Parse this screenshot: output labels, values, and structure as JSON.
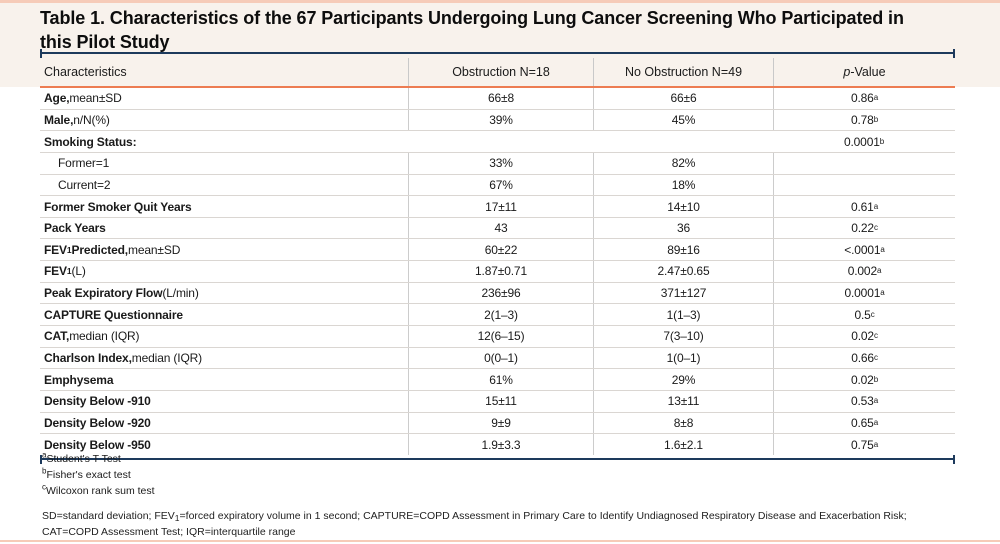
{
  "title": "Table 1. Characteristics of the 67 Participants Undergoing Lung Cancer Screening Who Participated in this Pilot Study",
  "colors": {
    "accent_bar": "#f6cbb8",
    "title_band": "#f8f2ec",
    "navy_rule": "#1d3a5c",
    "orange_rule": "#ed7c52",
    "row_separator": "#dad6d2",
    "column_divider": "#cccccc"
  },
  "table": {
    "header": {
      "col1": "Characteristics",
      "col2": "Obstruction N=18",
      "col3": "No Obstruction N=49",
      "col4_parts": [
        {
          "t": "p",
          "i": true
        },
        {
          "t": "-Value"
        }
      ]
    },
    "rows": [
      {
        "label": [
          {
            "t": "Age,",
            "b": true
          },
          {
            "t": " mean±SD"
          }
        ],
        "c1": "66±8",
        "c2": "66±6",
        "p": "0.86",
        "psup": "a"
      },
      {
        "label": [
          {
            "t": "Male,",
            "b": true
          },
          {
            "t": " n/N(%)"
          }
        ],
        "c1": "39%",
        "c2": "45%",
        "p": "0.78",
        "psup": "b"
      },
      {
        "label": [
          {
            "t": "Smoking Status:",
            "b": true
          }
        ],
        "span": true,
        "c1": "",
        "c2": "",
        "p": "0.0001",
        "psup": "b"
      },
      {
        "label": [
          {
            "t": "Former=1"
          }
        ],
        "indent": true,
        "c1": "33%",
        "c2": "82%",
        "p": "",
        "psup": ""
      },
      {
        "label": [
          {
            "t": "Current=2"
          }
        ],
        "indent": true,
        "c1": "67%",
        "c2": "18%",
        "p": "",
        "psup": ""
      },
      {
        "label": [
          {
            "t": "Former Smoker Quit Years",
            "b": true
          }
        ],
        "c1": "17±11",
        "c2": "14±10",
        "p": "0.61",
        "psup": "a"
      },
      {
        "label": [
          {
            "t": "Pack Years",
            "b": true
          }
        ],
        "c1": "43",
        "c2": "36",
        "p": "0.22",
        "psup": "c"
      },
      {
        "label": [
          {
            "t": "FEV",
            "b": true
          },
          {
            "t": "1",
            "b": true,
            "sub": true
          },
          {
            "t": " Predicted,",
            "b": true
          },
          {
            "t": " mean±SD"
          }
        ],
        "c1": "60±22",
        "c2": "89±16",
        "p": "<.0001",
        "psup": "a"
      },
      {
        "label": [
          {
            "t": "FEV",
            "b": true
          },
          {
            "t": "1",
            "b": true,
            "sub": true
          },
          {
            "t": "(L)"
          }
        ],
        "c1": "1.87±0.71",
        "c2": "2.47±0.65",
        "p": "0.002",
        "psup": "a"
      },
      {
        "label": [
          {
            "t": "Peak Expiratory Flow",
            "b": true
          },
          {
            "t": " (L/min)"
          }
        ],
        "c1": "236±96",
        "c2": "371±127",
        "p": "0.0001",
        "psup": "a"
      },
      {
        "label": [
          {
            "t": "CAPTURE Questionnaire",
            "b": true
          }
        ],
        "c1": "2(1–3)",
        "c2": "1(1–3)",
        "p": "0.5",
        "psup": "c"
      },
      {
        "label": [
          {
            "t": "CAT,",
            "b": true
          },
          {
            "t": " median (IQR)"
          }
        ],
        "c1": "12(6–15)",
        "c2": "7(3–10)",
        "p": "0.02",
        "psup": "c"
      },
      {
        "label": [
          {
            "t": "Charlson Index,",
            "b": true
          },
          {
            "t": " median (IQR)"
          }
        ],
        "c1": "0(0–1)",
        "c2": "1(0–1)",
        "p": "0.66",
        "psup": "c"
      },
      {
        "label": [
          {
            "t": "Emphysema",
            "b": true
          }
        ],
        "c1": "61%",
        "c2": "29%",
        "p": "0.02",
        "psup": "b"
      },
      {
        "label": [
          {
            "t": "Density Below -910",
            "b": true
          }
        ],
        "c1": "15±11",
        "c2": "13±11",
        "p": "0.53",
        "psup": "a"
      },
      {
        "label": [
          {
            "t": "Density Below -920",
            "b": true
          }
        ],
        "c1": "9±9",
        "c2": "8±8",
        "p": "0.65",
        "psup": "a"
      },
      {
        "label": [
          {
            "t": "Density Below -950",
            "b": true
          }
        ],
        "c1": "1.9±3.3",
        "c2": "1.6±2.1",
        "p": "0.75",
        "psup": "a"
      }
    ]
  },
  "footnotes": [
    {
      "sup": "a",
      "text": "Student's T Test"
    },
    {
      "sup": "b",
      "text": "Fisher's exact test"
    },
    {
      "sup": "c",
      "text": "Wilcoxon rank sum test"
    }
  ],
  "abbreviations_parts": [
    {
      "t": "SD=standard deviation; FEV"
    },
    {
      "t": "1",
      "sub": true
    },
    {
      "t": "=forced expiratory volume in 1 second; CAPTURE=COPD Assessment in Primary Care to Identify Undiagnosed Respiratory Disease and Exacerbation Risk; CAT=COPD Assessment Test; IQR=interquartile range"
    }
  ]
}
